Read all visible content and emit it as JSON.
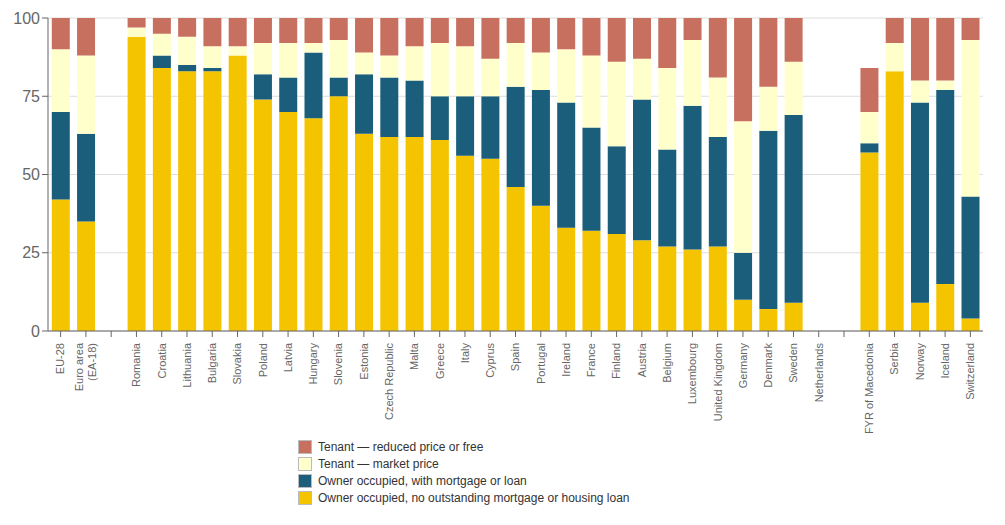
{
  "chart_data": {
    "type": "bar",
    "stacked": true,
    "grid": true,
    "legend": "bottom",
    "categories": [
      "EU-28",
      "Euro area\n(EA-18)",
      null,
      "Romania",
      "Croatia",
      "Lithuania",
      "Bulgaria",
      "Slovakia",
      "Poland",
      "Latvia",
      "Hungary",
      "Slovenia",
      "Estonia",
      "Czech Republic",
      "Malta",
      "Greece",
      "Italy",
      "Cyprus",
      "Spain",
      "Portugal",
      "Ireland",
      "France",
      "Finland",
      "Austria",
      "Belgium",
      "Luxembourg",
      "United Kingdom",
      "Germany",
      "Denmark",
      "Sweden",
      "Netherlands",
      null,
      "FYR of Macedonia",
      "Serbia",
      "Norway",
      "Iceland",
      "Switzerland"
    ],
    "series": [
      {
        "name": "Owner occupied, no outstanding mortgage or housing loan",
        "color": "#F5C400",
        "values": [
          42,
          35,
          0,
          94,
          84,
          83,
          83,
          88,
          74,
          70,
          68,
          75,
          63,
          62,
          62,
          61,
          56,
          55,
          46,
          40,
          33,
          32,
          31,
          29,
          27,
          26,
          27,
          10,
          7,
          9,
          0,
          0,
          57,
          83,
          9,
          15,
          4
        ]
      },
      {
        "name": "Owner occupied, with mortgage or loan",
        "color": "#1B5E7B",
        "values": [
          28,
          28,
          0,
          0,
          4,
          2,
          1,
          0,
          8,
          11,
          21,
          6,
          19,
          19,
          18,
          14,
          19,
          20,
          32,
          37,
          40,
          33,
          28,
          45,
          31,
          46,
          35,
          15,
          57,
          60,
          0,
          0,
          3,
          0,
          64,
          62,
          39
        ]
      },
      {
        "name": "Tenant — market price",
        "color": "#FFFFCC",
        "values": [
          20,
          25,
          0,
          3,
          7,
          9,
          7,
          3,
          10,
          11,
          3,
          12,
          7,
          7,
          11,
          17,
          16,
          12,
          14,
          12,
          17,
          23,
          27,
          13,
          26,
          21,
          19,
          42,
          14,
          17,
          0,
          0,
          10,
          9,
          7,
          3,
          50
        ]
      },
      {
        "name": "Tenant — reduced price or free",
        "color": "#C87060",
        "values": [
          10,
          12,
          0,
          3,
          5,
          6,
          9,
          9,
          8,
          8,
          8,
          7,
          11,
          12,
          9,
          8,
          9,
          13,
          8,
          11,
          10,
          12,
          14,
          13,
          16,
          7,
          19,
          33,
          22,
          14,
          0,
          0,
          14,
          8,
          20,
          20,
          7
        ]
      }
    ],
    "ylim": [
      0,
      100
    ],
    "yticks": [
      0,
      25,
      50,
      75,
      100
    ]
  }
}
